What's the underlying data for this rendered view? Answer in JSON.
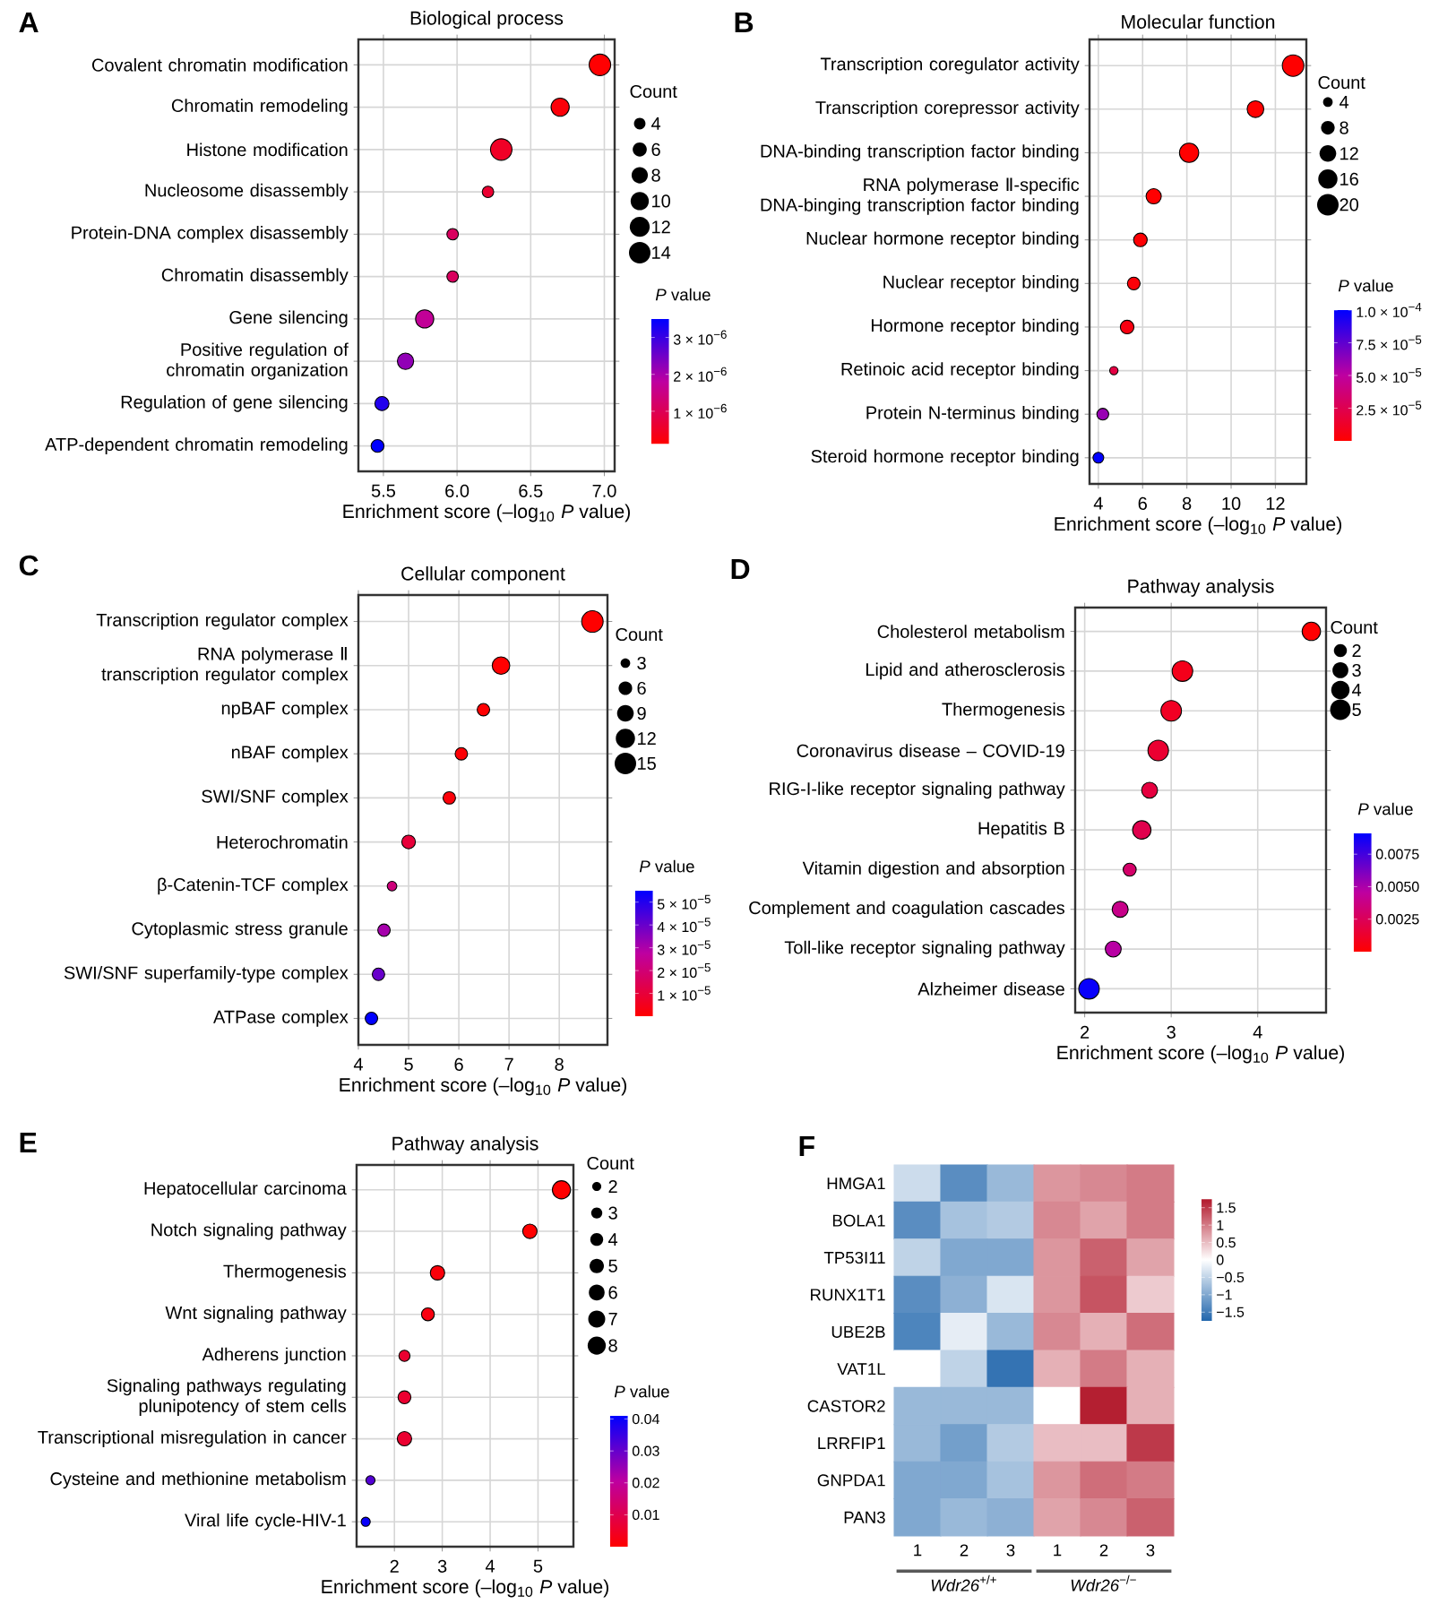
{
  "chart_data": [
    {
      "type": "bubble",
      "orientation": "horizontal",
      "title": "Biological process",
      "xlabel": "Enrichment score (–log$_{10}$ *P* value)",
      "legend_title": "Count",
      "clabel": "*P* value",
      "annotations": [
        "A"
      ],
      "categories": [
        "Covalent chromatin modification",
        "Chromatin remodeling",
        "Histone modification",
        "Nucleosome disassembly",
        "Protein-DNA complex disassembly",
        "Chromatin disassembly",
        "Gene silencing",
        "Positive regulation of chromatin organization",
        "Regulation of gene silencing",
        "ATP-dependent chromatin remodeling"
      ],
      "values": [
        6.97,
        6.7,
        6.3,
        6.21,
        5.97,
        5.97,
        5.78,
        5.65,
        5.49,
        5.46
      ],
      "sizes": [
        14,
        10,
        14,
        4,
        4,
        4,
        10,
        8,
        6,
        5
      ],
      "size_legend": [
        4,
        6,
        8,
        10,
        12,
        14
      ],
      "cvalues": [
        1.1e-07,
        2e-07,
        5e-07,
        6.2e-07,
        1.1e-06,
        1.1e-06,
        1.7e-06,
        2.2e-06,
        3.2e-06,
        3.5e-06
      ],
      "clim": [
        1e-07,
        3.5e-06
      ],
      "cticks": [
        {
          "value": 1e-06,
          "label": "1 × 10$^{−6}$"
        },
        {
          "value": 2e-06,
          "label": "2 × 10$^{−6}$"
        },
        {
          "value": 3e-06,
          "label": "3 × 10$^{−6}$"
        }
      ],
      "xlim": [
        5.33,
        7.07
      ],
      "xticks": [
        5.5,
        {
          "value": 6,
          "label": "6.0"
        },
        6.5,
        {
          "value": 7,
          "label": "7.0"
        }
      ],
      "grid": true
    },
    {
      "type": "bubble",
      "orientation": "horizontal",
      "title": "Molecular function",
      "xlabel": "Enrichment score (–log$_{10}$ *P* value)",
      "legend_title": "Count",
      "clabel": "*P* value",
      "annotations": [
        "B"
      ],
      "categories": [
        "Transcription coregulator activity",
        "Transcription corepressor activity",
        "DNA-binding transcription factor binding",
        "RNA polymerase Ⅱ-specific DNA-binging transcription factor binding",
        "Nuclear hormone receptor binding",
        "Nuclear receptor binding",
        "Hormone receptor binding",
        "Retinoic acid receptor binding",
        "Protein N-terminus binding",
        "Steroid hormone receptor binding"
      ],
      "values": [
        12.8,
        11.1,
        8.1,
        6.5,
        5.9,
        5.6,
        5.3,
        4.7,
        4.2,
        4.0
      ],
      "sizes": [
        20,
        12,
        16,
        10,
        8,
        7,
        8,
        3,
        6,
        5
      ],
      "size_legend": [
        4,
        8,
        12,
        16,
        20
      ],
      "cvalues": [
        1.7e-13,
        8.7e-12,
        7.6e-09,
        3.1e-07,
        1.4e-06,
        2.4e-06,
        5.1e-06,
        2.1e-05,
        6e-05,
        0.0001
      ],
      "clim": [
        0,
        0.0001
      ],
      "cticks": [
        {
          "value": 2.5e-05,
          "label": "2.5 × 10$^{−5}$"
        },
        {
          "value": 5e-05,
          "label": "5.0 × 10$^{−5}$"
        },
        {
          "value": 7.5e-05,
          "label": "7.5 × 10$^{−5}$"
        },
        {
          "value": 0.0001,
          "label": "1.0 × 10$^{−4}$"
        }
      ],
      "xlim": [
        3.6,
        13.4
      ],
      "xticks": [
        4,
        6,
        8,
        10,
        12
      ],
      "grid": true
    },
    {
      "type": "bubble",
      "orientation": "horizontal",
      "title": "Cellular component",
      "xlabel": "Enrichment score (–log$_{10}$ *P* value)",
      "legend_title": "Count",
      "clabel": "*P* value",
      "annotations": [
        "C"
      ],
      "categories": [
        "Transcription regulator complex",
        "RNA polymerase Ⅱ transcription regulator complex",
        "npBAF complex",
        "nBAF complex",
        "SWI/SNF complex",
        "Heterochromatin",
        "β-Catenin-TCF complex",
        "Cytoplasmic stress granule",
        "SWI/SNF superfamily-type complex",
        "ATPase complex"
      ],
      "values": [
        8.66,
        6.84,
        6.49,
        6.05,
        5.81,
        5.0,
        4.67,
        4.51,
        4.4,
        4.26
      ],
      "sizes": [
        15,
        10,
        5,
        5,
        5,
        6,
        3,
        5,
        5,
        5
      ],
      "size_legend": [
        3,
        6,
        9,
        12,
        15
      ],
      "cvalues": [
        2.2e-09,
        1.4e-07,
        3.2e-07,
        8.9e-07,
        1.5e-06,
        1e-05,
        2.1e-05,
        3.1e-05,
        4e-05,
        5.5e-05
      ],
      "clim": [
        0,
        5.5e-05
      ],
      "cticks": [
        {
          "value": 1e-05,
          "label": "1 × 10$^{−5}$"
        },
        {
          "value": 2e-05,
          "label": "2 × 10$^{−5}$"
        },
        {
          "value": 3e-05,
          "label": "3 × 10$^{−5}$"
        },
        {
          "value": 4e-05,
          "label": "4 × 10$^{−5}$"
        },
        {
          "value": 5e-05,
          "label": "5 × 10$^{−5}$"
        }
      ],
      "xlim": [
        4.0,
        8.96
      ],
      "xticks": [
        4,
        5,
        6,
        7,
        8
      ],
      "grid": true
    },
    {
      "type": "bubble",
      "orientation": "horizontal",
      "title": "Pathway analysis",
      "xlabel": "Enrichment score (–log$_{10}$ *P* value)",
      "legend_title": "Count",
      "clabel": "*P* value",
      "annotations": [
        "D"
      ],
      "categories": [
        "Cholesterol metabolism",
        "Lipid and atherosclerosis",
        "Thermogenesis",
        "Coronavirus disease – COVID-19",
        "RIG-I-like receptor signaling pathway",
        "Hepatitis B",
        "Vitamin digestion and absorption",
        "Complement and coagulation cascades",
        "Toll-like receptor signaling pathway",
        "Alzheimer disease"
      ],
      "values": [
        4.62,
        3.13,
        3.0,
        2.85,
        2.75,
        2.66,
        2.52,
        2.41,
        2.33,
        2.05
      ],
      "sizes": [
        4,
        5,
        5,
        5,
        3,
        4,
        2,
        3,
        3,
        5
      ],
      "size_legend": [
        2,
        3,
        4,
        5
      ],
      "cvalues": [
        2.4e-05,
        0.00074,
        0.001,
        0.0014,
        0.0018,
        0.0022,
        0.003,
        0.0039,
        0.0047,
        0.0089
      ],
      "clim": [
        0,
        0.0091
      ],
      "cticks": [
        0.0025,
        {
          "value": 0.005,
          "label": "0.0050"
        },
        0.0075
      ],
      "xlim": [
        1.89,
        4.79
      ],
      "xticks": [
        2,
        3,
        4
      ],
      "grid": true
    },
    {
      "type": "bubble",
      "orientation": "horizontal",
      "title": "Pathway analysis",
      "xlabel": "Enrichment score (–log$_{10}$ *P* value)",
      "legend_title": "Count",
      "clabel": "*P* value",
      "annotations": [
        "E"
      ],
      "categories": [
        "Hepatocellular carcinoma",
        "Notch signaling pathway",
        "Thermogenesis",
        "Wnt signaling pathway",
        "Adherens junction",
        "Signaling pathways regulating plunipotency of stem cells",
        "Transcriptional misregulation in cancer",
        "Cysteine and methionine metabolism",
        "Viral life cycle-HIV-1"
      ],
      "values": [
        5.49,
        4.83,
        2.9,
        2.7,
        2.21,
        2.21,
        2.21,
        1.5,
        1.4
      ],
      "sizes": [
        8,
        5,
        5,
        4,
        3,
        4,
        5,
        2,
        2
      ],
      "size_legend": [
        2,
        3,
        4,
        5,
        6,
        7,
        8
      ],
      "cvalues": [
        3.2e-06,
        1.5e-05,
        0.0013,
        0.002,
        0.0062,
        0.0062,
        0.0062,
        0.032,
        0.04
      ],
      "clim": [
        0,
        0.041
      ],
      "cticks": [
        0.01,
        0.02,
        0.03,
        0.04
      ],
      "xlim": [
        1.21,
        5.74
      ],
      "xticks": [
        2,
        3,
        4,
        5
      ],
      "grid": true
    },
    {
      "type": "heatmap",
      "annotations": [
        "F",
        "*Wdr26*$^{+/+}$",
        "*Wdr26*$^{−/−}$"
      ],
      "categories": [
        "1",
        "2",
        "3",
        "1",
        "2",
        "3"
      ],
      "y_categories": [
        "HMGA1",
        "BOLA1",
        "TP53I11",
        "RUNX1T1",
        "UBE2B",
        "VAT1L",
        "CASTOR2",
        "LRRFIP1",
        "GNPDA1",
        "PAN3"
      ],
      "cells": [
        [
          -0.4,
          -1.3,
          -0.8,
          0.8,
          0.9,
          1.0
        ],
        [
          -1.3,
          -0.7,
          -0.6,
          0.9,
          0.7,
          1.0
        ],
        [
          -0.5,
          -1.0,
          -1.0,
          0.8,
          1.2,
          0.7
        ],
        [
          -1.3,
          -0.9,
          -0.3,
          0.8,
          1.3,
          0.4
        ],
        [
          -1.4,
          -0.2,
          -0.8,
          0.9,
          0.6,
          1.1
        ],
        [
          0.0,
          -0.5,
          -1.6,
          0.6,
          1.0,
          0.6
        ],
        [
          -0.8,
          -0.8,
          -0.8,
          0.0,
          1.7,
          0.6
        ],
        [
          -0.8,
          -1.1,
          -0.6,
          0.5,
          0.5,
          1.5
        ],
        [
          -1.0,
          -1.0,
          -0.7,
          0.8,
          1.1,
          1.0
        ],
        [
          -1.0,
          -0.8,
          -0.9,
          0.7,
          0.9,
          1.2
        ]
      ],
      "clim": [
        -1.75,
        1.75
      ],
      "cticks": [
        1.5,
        1,
        0.5,
        0,
        {
          "value": -0.5,
          "label": "−0.5"
        },
        {
          "value": -1,
          "label": "−1"
        },
        {
          "value": -1.5,
          "label": "−1.5"
        }
      ]
    }
  ]
}
